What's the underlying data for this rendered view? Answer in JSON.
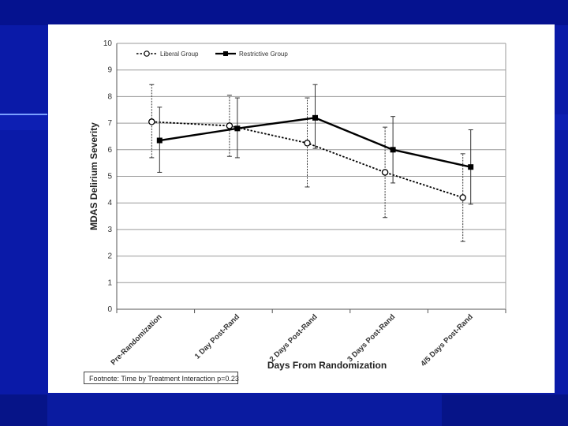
{
  "chart_data": {
    "type": "line",
    "title": "",
    "xlabel": "Days From Randomization",
    "ylabel": "MDAS Delirium Severity",
    "ylim": [
      0,
      10
    ],
    "yticks": [
      "0",
      "1",
      "2",
      "3",
      "4",
      "5",
      "6",
      "7",
      "8",
      "9",
      "10"
    ],
    "categories": [
      "Pre-Randomization",
      "1 Day Post-Rand",
      "2 Days Post-Rand",
      "3 Days Post-Rand",
      "4/5 Days Post-Rand"
    ],
    "grid": true,
    "legend_position": "top-left",
    "series": [
      {
        "name": "Liberal Group",
        "style": "dotted",
        "marker": "open-circle",
        "color": "#000000",
        "values": [
          7.05,
          6.9,
          6.25,
          5.15,
          4.2
        ],
        "err_low": [
          5.7,
          5.75,
          4.6,
          3.45,
          2.55
        ],
        "err_high": [
          8.45,
          8.05,
          7.95,
          6.85,
          5.85
        ]
      },
      {
        "name": "Restrictive Group",
        "style": "solid",
        "marker": "filled-square",
        "color": "#000000",
        "values": [
          6.35,
          6.8,
          7.2,
          6.0,
          5.35
        ],
        "err_low": [
          5.15,
          5.7,
          6.05,
          4.75,
          3.95
        ],
        "err_high": [
          7.6,
          7.95,
          8.45,
          7.25,
          6.75
        ]
      }
    ],
    "footnote": "Footnote: Time by Treatment Interaction p=0.23"
  }
}
